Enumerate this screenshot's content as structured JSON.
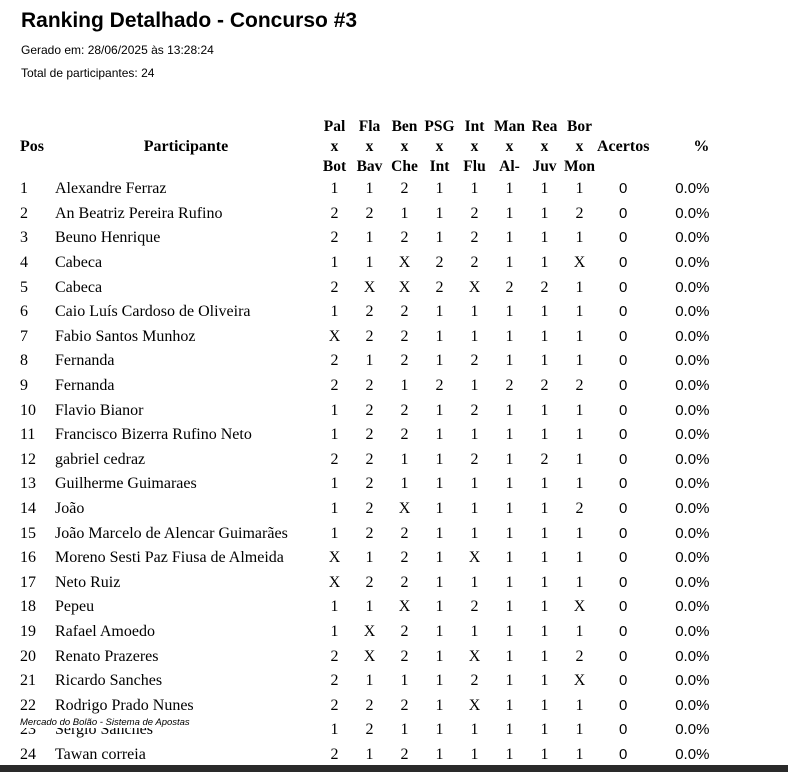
{
  "report": {
    "title": "Ranking Detalhado - Concurso #3",
    "generated": "Gerado em: 28/06/2025 às 13:28:24",
    "total": "Total de participantes: 24"
  },
  "table": {
    "headers": {
      "pos": "Pos",
      "participant": "Participante",
      "hits": "Acertos",
      "percent": "%"
    },
    "matches": [
      {
        "home": "Pal",
        "sep": "x",
        "away": "Bot"
      },
      {
        "home": "Fla",
        "sep": "x",
        "away": "Bav"
      },
      {
        "home": "Ben",
        "sep": "x",
        "away": "Che"
      },
      {
        "home": "PSG",
        "sep": "x",
        "away": "Int"
      },
      {
        "home": "Int",
        "sep": "x",
        "away": "Flu"
      },
      {
        "home": "Man",
        "sep": "x",
        "away": "Al-"
      },
      {
        "home": "Rea",
        "sep": "x",
        "away": "Juv"
      },
      {
        "home": "Bor",
        "sep": "x",
        "away": "Mon"
      }
    ],
    "rows": [
      {
        "pos": "1",
        "name": "Alexandre Ferraz",
        "picks": [
          "1",
          "1",
          "2",
          "1",
          "1",
          "1",
          "1",
          "1"
        ],
        "hits": "0",
        "percent": "0.0%"
      },
      {
        "pos": "2",
        "name": "An Beatriz Pereira Rufino",
        "picks": [
          "2",
          "2",
          "1",
          "1",
          "2",
          "1",
          "1",
          "2"
        ],
        "hits": "0",
        "percent": "0.0%"
      },
      {
        "pos": "3",
        "name": "Beuno Henrique",
        "picks": [
          "2",
          "1",
          "2",
          "1",
          "2",
          "1",
          "1",
          "1"
        ],
        "hits": "0",
        "percent": "0.0%"
      },
      {
        "pos": "4",
        "name": "Cabeca",
        "picks": [
          "1",
          "1",
          "X",
          "2",
          "2",
          "1",
          "1",
          "X"
        ],
        "hits": "0",
        "percent": "0.0%"
      },
      {
        "pos": "5",
        "name": "Cabeca",
        "picks": [
          "2",
          "X",
          "X",
          "2",
          "X",
          "2",
          "2",
          "1"
        ],
        "hits": "0",
        "percent": "0.0%"
      },
      {
        "pos": "6",
        "name": "Caio Luís Cardoso de Oliveira",
        "picks": [
          "1",
          "2",
          "2",
          "1",
          "1",
          "1",
          "1",
          "1"
        ],
        "hits": "0",
        "percent": "0.0%"
      },
      {
        "pos": "7",
        "name": "Fabio Santos Munhoz",
        "picks": [
          "X",
          "2",
          "2",
          "1",
          "1",
          "1",
          "1",
          "1"
        ],
        "hits": "0",
        "percent": "0.0%"
      },
      {
        "pos": "8",
        "name": "Fernanda",
        "picks": [
          "2",
          "1",
          "2",
          "1",
          "2",
          "1",
          "1",
          "1"
        ],
        "hits": "0",
        "percent": "0.0%"
      },
      {
        "pos": "9",
        "name": "Fernanda",
        "picks": [
          "2",
          "2",
          "1",
          "2",
          "1",
          "2",
          "2",
          "2"
        ],
        "hits": "0",
        "percent": "0.0%"
      },
      {
        "pos": "10",
        "name": "Flavio Bianor",
        "picks": [
          "1",
          "2",
          "2",
          "1",
          "2",
          "1",
          "1",
          "1"
        ],
        "hits": "0",
        "percent": "0.0%"
      },
      {
        "pos": "11",
        "name": "Francisco Bizerra Rufino Neto",
        "picks": [
          "1",
          "2",
          "2",
          "1",
          "1",
          "1",
          "1",
          "1"
        ],
        "hits": "0",
        "percent": "0.0%"
      },
      {
        "pos": "12",
        "name": "gabriel cedraz",
        "picks": [
          "2",
          "2",
          "1",
          "1",
          "2",
          "1",
          "2",
          "1"
        ],
        "hits": "0",
        "percent": "0.0%"
      },
      {
        "pos": "13",
        "name": "Guilherme Guimaraes",
        "picks": [
          "1",
          "2",
          "1",
          "1",
          "1",
          "1",
          "1",
          "1"
        ],
        "hits": "0",
        "percent": "0.0%"
      },
      {
        "pos": "14",
        "name": "João",
        "picks": [
          "1",
          "2",
          "X",
          "1",
          "1",
          "1",
          "1",
          "2"
        ],
        "hits": "0",
        "percent": "0.0%"
      },
      {
        "pos": "15",
        "name": "João Marcelo de Alencar Guimarães",
        "picks": [
          "1",
          "2",
          "2",
          "1",
          "1",
          "1",
          "1",
          "1"
        ],
        "hits": "0",
        "percent": "0.0%"
      },
      {
        "pos": "16",
        "name": "Moreno Sesti Paz Fiusa de Almeida",
        "picks": [
          "X",
          "1",
          "2",
          "1",
          "X",
          "1",
          "1",
          "1"
        ],
        "hits": "0",
        "percent": "0.0%"
      },
      {
        "pos": "17",
        "name": "Neto Ruiz",
        "picks": [
          "X",
          "2",
          "2",
          "1",
          "1",
          "1",
          "1",
          "1"
        ],
        "hits": "0",
        "percent": "0.0%"
      },
      {
        "pos": "18",
        "name": "Pepeu",
        "picks": [
          "1",
          "1",
          "X",
          "1",
          "2",
          "1",
          "1",
          "X"
        ],
        "hits": "0",
        "percent": "0.0%"
      },
      {
        "pos": "19",
        "name": "Rafael Amoedo",
        "picks": [
          "1",
          "X",
          "2",
          "1",
          "1",
          "1",
          "1",
          "1"
        ],
        "hits": "0",
        "percent": "0.0%"
      },
      {
        "pos": "20",
        "name": "Renato Prazeres",
        "picks": [
          "2",
          "X",
          "2",
          "1",
          "X",
          "1",
          "1",
          "2"
        ],
        "hits": "0",
        "percent": "0.0%"
      },
      {
        "pos": "21",
        "name": "Ricardo Sanches",
        "picks": [
          "2",
          "1",
          "1",
          "1",
          "2",
          "1",
          "1",
          "X"
        ],
        "hits": "0",
        "percent": "0.0%"
      },
      {
        "pos": "22",
        "name": "Rodrigo Prado Nunes",
        "picks": [
          "2",
          "2",
          "2",
          "1",
          "X",
          "1",
          "1",
          "1"
        ],
        "hits": "0",
        "percent": "0.0%"
      },
      {
        "pos": "23",
        "name": "Sergio Sanches",
        "picks": [
          "1",
          "2",
          "1",
          "1",
          "1",
          "1",
          "1",
          "1"
        ],
        "hits": "0",
        "percent": "0.0%"
      },
      {
        "pos": "24",
        "name": "Tawan correia",
        "picks": [
          "2",
          "1",
          "2",
          "1",
          "1",
          "1",
          "1",
          "1"
        ],
        "hits": "0",
        "percent": "0.0%"
      }
    ]
  },
  "footer": {
    "text": "Mercado do Bolão - Sistema de Apostas"
  }
}
